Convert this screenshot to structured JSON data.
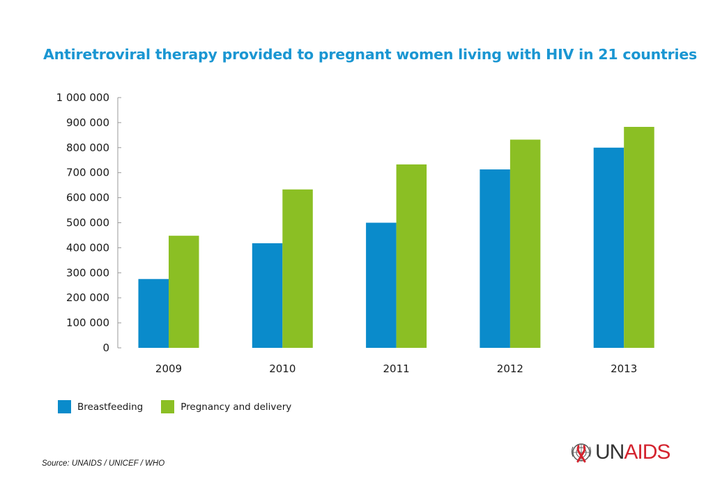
{
  "title": "Antiretroviral therapy provided to pregnant women living with HIV in 21 countries",
  "source": "Source: UNAIDS / UNICEF / WHO",
  "logo": {
    "un": "UN",
    "aids": "AIDS",
    "icon": "un-emblem-ribbon-icon"
  },
  "colors": {
    "title": "#1a96d2",
    "breastfeeding": "#0a8bcb",
    "pregnancy": "#8bbf24"
  },
  "chart_data": {
    "type": "bar",
    "categories": [
      "2009",
      "2010",
      "2011",
      "2012",
      "2013"
    ],
    "series": [
      {
        "name": "Breastfeeding",
        "color": "#0a8bcb",
        "values": [
          275000,
          418000,
          500000,
          713000,
          800000
        ]
      },
      {
        "name": "Pregnancy and delivery",
        "color": "#8bbf24",
        "values": [
          448000,
          633000,
          733000,
          832000,
          883000
        ]
      }
    ],
    "ylim": [
      0,
      1000000
    ],
    "yticks": [
      0,
      100000,
      200000,
      300000,
      400000,
      500000,
      600000,
      700000,
      800000,
      900000,
      1000000
    ],
    "ytick_labels": [
      "0",
      "100 000",
      "200 000",
      "300 000",
      "400 000",
      "500 000",
      "600 000",
      "700 000",
      "800 000",
      "900 000",
      "1 000 000"
    ],
    "legend": "bottom-left",
    "grid": false
  }
}
